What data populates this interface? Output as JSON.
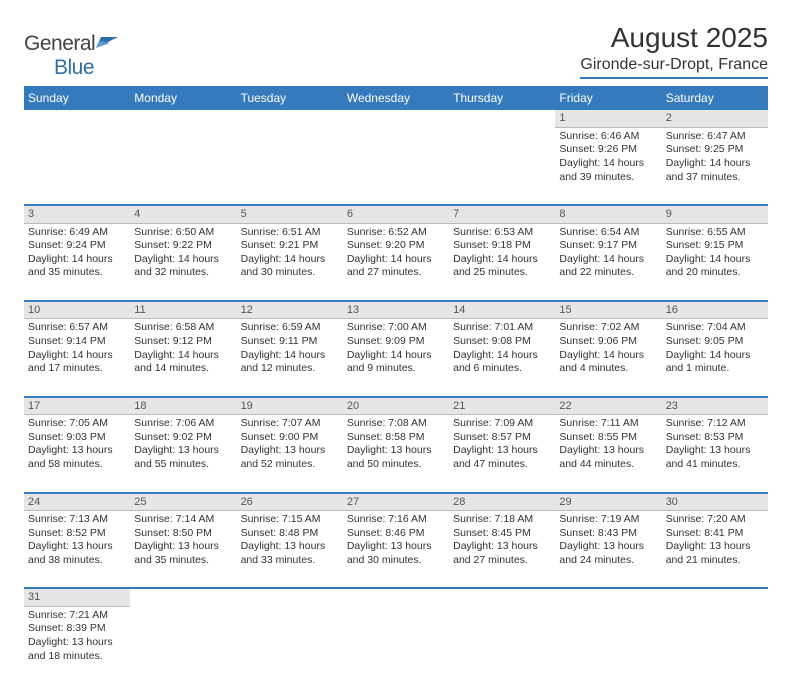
{
  "brand": {
    "part1": "General",
    "part2": "Blue"
  },
  "title": "August 2025",
  "location": "Gironde-sur-Dropt, France",
  "colors": {
    "header_bg": "#357abd",
    "header_text": "#ffffff",
    "daynum_bg": "#e6e6e6",
    "row_divider": "#357abd",
    "text": "#333333",
    "logo_accent": "#2f6fa8"
  },
  "weekdays": [
    "Sunday",
    "Monday",
    "Tuesday",
    "Wednesday",
    "Thursday",
    "Friday",
    "Saturday"
  ],
  "weeks": [
    [
      null,
      null,
      null,
      null,
      null,
      {
        "n": "1",
        "sr": "Sunrise: 6:46 AM",
        "ss": "Sunset: 9:26 PM",
        "d1": "Daylight: 14 hours",
        "d2": "and 39 minutes."
      },
      {
        "n": "2",
        "sr": "Sunrise: 6:47 AM",
        "ss": "Sunset: 9:25 PM",
        "d1": "Daylight: 14 hours",
        "d2": "and 37 minutes."
      }
    ],
    [
      {
        "n": "3",
        "sr": "Sunrise: 6:49 AM",
        "ss": "Sunset: 9:24 PM",
        "d1": "Daylight: 14 hours",
        "d2": "and 35 minutes."
      },
      {
        "n": "4",
        "sr": "Sunrise: 6:50 AM",
        "ss": "Sunset: 9:22 PM",
        "d1": "Daylight: 14 hours",
        "d2": "and 32 minutes."
      },
      {
        "n": "5",
        "sr": "Sunrise: 6:51 AM",
        "ss": "Sunset: 9:21 PM",
        "d1": "Daylight: 14 hours",
        "d2": "and 30 minutes."
      },
      {
        "n": "6",
        "sr": "Sunrise: 6:52 AM",
        "ss": "Sunset: 9:20 PM",
        "d1": "Daylight: 14 hours",
        "d2": "and 27 minutes."
      },
      {
        "n": "7",
        "sr": "Sunrise: 6:53 AM",
        "ss": "Sunset: 9:18 PM",
        "d1": "Daylight: 14 hours",
        "d2": "and 25 minutes."
      },
      {
        "n": "8",
        "sr": "Sunrise: 6:54 AM",
        "ss": "Sunset: 9:17 PM",
        "d1": "Daylight: 14 hours",
        "d2": "and 22 minutes."
      },
      {
        "n": "9",
        "sr": "Sunrise: 6:55 AM",
        "ss": "Sunset: 9:15 PM",
        "d1": "Daylight: 14 hours",
        "d2": "and 20 minutes."
      }
    ],
    [
      {
        "n": "10",
        "sr": "Sunrise: 6:57 AM",
        "ss": "Sunset: 9:14 PM",
        "d1": "Daylight: 14 hours",
        "d2": "and 17 minutes."
      },
      {
        "n": "11",
        "sr": "Sunrise: 6:58 AM",
        "ss": "Sunset: 9:12 PM",
        "d1": "Daylight: 14 hours",
        "d2": "and 14 minutes."
      },
      {
        "n": "12",
        "sr": "Sunrise: 6:59 AM",
        "ss": "Sunset: 9:11 PM",
        "d1": "Daylight: 14 hours",
        "d2": "and 12 minutes."
      },
      {
        "n": "13",
        "sr": "Sunrise: 7:00 AM",
        "ss": "Sunset: 9:09 PM",
        "d1": "Daylight: 14 hours",
        "d2": "and 9 minutes."
      },
      {
        "n": "14",
        "sr": "Sunrise: 7:01 AM",
        "ss": "Sunset: 9:08 PM",
        "d1": "Daylight: 14 hours",
        "d2": "and 6 minutes."
      },
      {
        "n": "15",
        "sr": "Sunrise: 7:02 AM",
        "ss": "Sunset: 9:06 PM",
        "d1": "Daylight: 14 hours",
        "d2": "and 4 minutes."
      },
      {
        "n": "16",
        "sr": "Sunrise: 7:04 AM",
        "ss": "Sunset: 9:05 PM",
        "d1": "Daylight: 14 hours",
        "d2": "and 1 minute."
      }
    ],
    [
      {
        "n": "17",
        "sr": "Sunrise: 7:05 AM",
        "ss": "Sunset: 9:03 PM",
        "d1": "Daylight: 13 hours",
        "d2": "and 58 minutes."
      },
      {
        "n": "18",
        "sr": "Sunrise: 7:06 AM",
        "ss": "Sunset: 9:02 PM",
        "d1": "Daylight: 13 hours",
        "d2": "and 55 minutes."
      },
      {
        "n": "19",
        "sr": "Sunrise: 7:07 AM",
        "ss": "Sunset: 9:00 PM",
        "d1": "Daylight: 13 hours",
        "d2": "and 52 minutes."
      },
      {
        "n": "20",
        "sr": "Sunrise: 7:08 AM",
        "ss": "Sunset: 8:58 PM",
        "d1": "Daylight: 13 hours",
        "d2": "and 50 minutes."
      },
      {
        "n": "21",
        "sr": "Sunrise: 7:09 AM",
        "ss": "Sunset: 8:57 PM",
        "d1": "Daylight: 13 hours",
        "d2": "and 47 minutes."
      },
      {
        "n": "22",
        "sr": "Sunrise: 7:11 AM",
        "ss": "Sunset: 8:55 PM",
        "d1": "Daylight: 13 hours",
        "d2": "and 44 minutes."
      },
      {
        "n": "23",
        "sr": "Sunrise: 7:12 AM",
        "ss": "Sunset: 8:53 PM",
        "d1": "Daylight: 13 hours",
        "d2": "and 41 minutes."
      }
    ],
    [
      {
        "n": "24",
        "sr": "Sunrise: 7:13 AM",
        "ss": "Sunset: 8:52 PM",
        "d1": "Daylight: 13 hours",
        "d2": "and 38 minutes."
      },
      {
        "n": "25",
        "sr": "Sunrise: 7:14 AM",
        "ss": "Sunset: 8:50 PM",
        "d1": "Daylight: 13 hours",
        "d2": "and 35 minutes."
      },
      {
        "n": "26",
        "sr": "Sunrise: 7:15 AM",
        "ss": "Sunset: 8:48 PM",
        "d1": "Daylight: 13 hours",
        "d2": "and 33 minutes."
      },
      {
        "n": "27",
        "sr": "Sunrise: 7:16 AM",
        "ss": "Sunset: 8:46 PM",
        "d1": "Daylight: 13 hours",
        "d2": "and 30 minutes."
      },
      {
        "n": "28",
        "sr": "Sunrise: 7:18 AM",
        "ss": "Sunset: 8:45 PM",
        "d1": "Daylight: 13 hours",
        "d2": "and 27 minutes."
      },
      {
        "n": "29",
        "sr": "Sunrise: 7:19 AM",
        "ss": "Sunset: 8:43 PM",
        "d1": "Daylight: 13 hours",
        "d2": "and 24 minutes."
      },
      {
        "n": "30",
        "sr": "Sunrise: 7:20 AM",
        "ss": "Sunset: 8:41 PM",
        "d1": "Daylight: 13 hours",
        "d2": "and 21 minutes."
      }
    ],
    [
      {
        "n": "31",
        "sr": "Sunrise: 7:21 AM",
        "ss": "Sunset: 8:39 PM",
        "d1": "Daylight: 13 hours",
        "d2": "and 18 minutes."
      },
      null,
      null,
      null,
      null,
      null,
      null
    ]
  ]
}
